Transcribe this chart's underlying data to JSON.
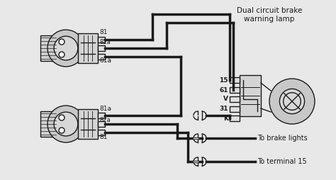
{
  "bg_color": "#e8e8e8",
  "line_color": "#1a1a1a",
  "title_line1": "Dual circuit brake",
  "title_line2": "warning lamp",
  "labels": {
    "81_top": "81",
    "82a_top": "82a",
    "81a_top": "81a",
    "81a_bottom": "81a",
    "82a_bottom": "82a",
    "81_bottom": "81",
    "t15": "15",
    "t61": "61",
    "tV": "V",
    "t31": "31",
    "K": "K",
    "brake_lights": "To brake lights",
    "terminal15": "To terminal 15"
  },
  "figsize": [
    4.74,
    2.54
  ],
  "dpi": 100
}
